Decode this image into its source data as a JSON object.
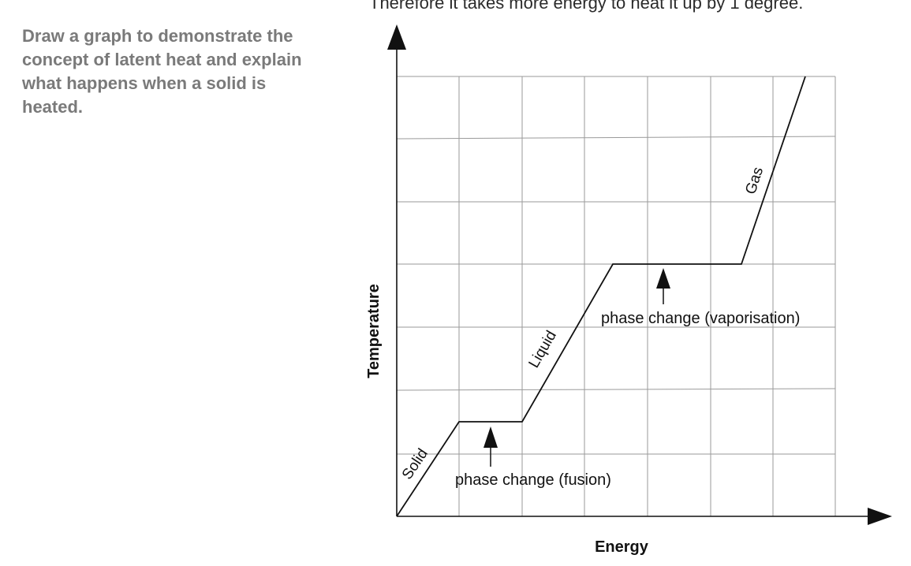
{
  "header": {
    "top_note": "Therefore it takes more energy to heat it up by 1 degree."
  },
  "question": {
    "text": "Draw a graph to demonstrate the concept of latent heat and explain what happens when a solid is heated."
  },
  "diagram": {
    "x_axis_label": "Energy",
    "y_axis_label": "Temperature",
    "segment_labels": {
      "solid": "Solid",
      "liquid": "Liquid",
      "gas": "Gas"
    },
    "annotations": {
      "fusion": "phase change (fusion)",
      "vaporisation": "phase change (vaporisation)"
    },
    "colors": {
      "grid": "#9a9a9a",
      "line": "#111111",
      "question_text": "#7a7a7a"
    }
  }
}
